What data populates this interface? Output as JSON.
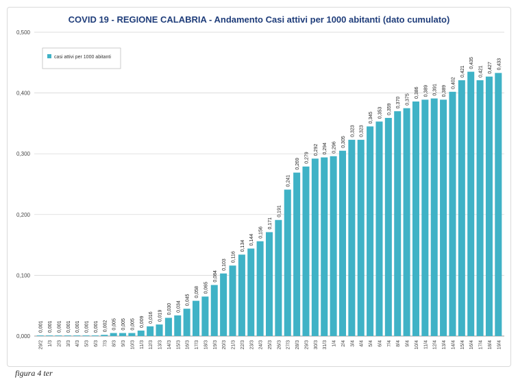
{
  "figure_caption": "figura 4 ter",
  "chart_data": {
    "type": "bar",
    "title": "COVID 19 - REGIONE CALABRIA - Andamento Casi attivi  per 1000 abitanti (dato cumulato)",
    "xlabel": "",
    "ylabel": "",
    "ylim": [
      0,
      0.5
    ],
    "yticks": [
      "0,000",
      "0,100",
      "0,200",
      "0,300",
      "0,400",
      "0,500"
    ],
    "grid": true,
    "legend_position": "top-left",
    "bar_color": "#3fb2c6",
    "title_color": "#1f3d7a",
    "categories": [
      "29/2",
      "1/3",
      "2/3",
      "3/3",
      "4/3",
      "5/3",
      "6/3",
      "7/3",
      "8/3",
      "9/3",
      "10/3",
      "11/3",
      "12/3",
      "13/3",
      "14/3",
      "15/3",
      "16/3",
      "17/3",
      "18/3",
      "19/3",
      "20/3",
      "21/3",
      "22/3",
      "23/3",
      "24/3",
      "25/3",
      "26/3",
      "27/3",
      "28/3",
      "29/3",
      "30/3",
      "31/3",
      "1/4",
      "2/4",
      "3/4",
      "4/4",
      "5/4",
      "6/4",
      "7/4",
      "8/4",
      "9/4",
      "10/4",
      "11/4",
      "12/4",
      "13/4",
      "14/4",
      "15/4",
      "16/4",
      "17/4",
      "18/4",
      "19/4"
    ],
    "series": [
      {
        "name": "casi attivi  per 1000 abitanti",
        "values": [
          0.001,
          0.001,
          0.001,
          0.001,
          0.001,
          0.001,
          0.001,
          0.002,
          0.005,
          0.005,
          0.005,
          0.009,
          0.016,
          0.019,
          0.03,
          0.034,
          0.045,
          0.058,
          0.065,
          0.084,
          0.103,
          0.116,
          0.134,
          0.144,
          0.156,
          0.171,
          0.191,
          0.241,
          0.269,
          0.279,
          0.292,
          0.294,
          0.296,
          0.305,
          0.323,
          0.323,
          0.345,
          0.353,
          0.359,
          0.37,
          0.375,
          0.386,
          0.389,
          0.391,
          0.389,
          0.402,
          0.421,
          0.435,
          0.421,
          0.427,
          0.433
        ],
        "labels": [
          "0,001",
          "0,001",
          "0,001",
          "0,001",
          "0,001",
          "0,001",
          "0,001",
          "0,002",
          "0,005",
          "0,005",
          "0,005",
          "0,009",
          "0,016",
          "0,019",
          "0,030",
          "0,034",
          "0,045",
          "0,058",
          "0,065",
          "0,084",
          "0,103",
          "0,116",
          "0,134",
          "0,144",
          "0,156",
          "0,171",
          "0,191",
          "0,241",
          "0,269",
          "0,279",
          "0,292",
          "0,294",
          "0,296",
          "0,305",
          "0,323",
          "0,323",
          "0,345",
          "0,353",
          "0,359",
          "0,370",
          "0,375",
          "0,386",
          "0,389",
          "0,391",
          "0,389",
          "0,402",
          "0,421",
          "0,435",
          "0,421",
          "0,427",
          "0,433"
        ]
      }
    ]
  }
}
